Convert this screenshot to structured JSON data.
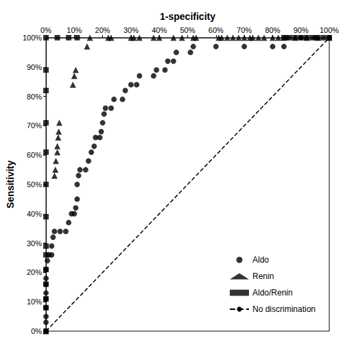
{
  "chart_data": {
    "type": "scatter",
    "xlabel": "1-specificity",
    "ylabel": "Sensitivity",
    "xlim": [
      0,
      100
    ],
    "ylim": [
      0,
      100
    ],
    "xticks": [
      {
        "value": 0,
        "label": "0%"
      },
      {
        "value": 10,
        "label": "10%"
      },
      {
        "value": 20,
        "label": "20%"
      },
      {
        "value": 30,
        "label": "30%"
      },
      {
        "value": 40,
        "label": "40%"
      },
      {
        "value": 50,
        "label": "50%"
      },
      {
        "value": 60,
        "label": "60%"
      },
      {
        "value": 70,
        "label": "70%"
      },
      {
        "value": 80,
        "label": "80%"
      },
      {
        "value": 90,
        "label": "90%"
      },
      {
        "value": 100,
        "label": "100%"
      }
    ],
    "yticks": [
      {
        "value": 0,
        "label": "0%"
      },
      {
        "value": 10,
        "label": "10%"
      },
      {
        "value": 20,
        "label": "20%"
      },
      {
        "value": 30,
        "label": "30%"
      },
      {
        "value": 40,
        "label": "40%"
      },
      {
        "value": 50,
        "label": "50%"
      },
      {
        "value": 60,
        "label": "60%"
      },
      {
        "value": 70,
        "label": "70%"
      },
      {
        "value": 80,
        "label": "80%"
      },
      {
        "value": 90,
        "label": "90%"
      },
      {
        "value": 100,
        "label": "100%"
      }
    ],
    "grid": false,
    "legend": "lower right",
    "series": [
      {
        "name": "Aldo",
        "type": "scatter",
        "marker": "circle",
        "color": "#000000",
        "x": [
          0,
          0,
          0,
          0,
          0,
          0,
          0,
          0,
          0,
          0.5,
          1,
          2,
          2,
          2.5,
          3,
          5,
          7,
          8,
          9,
          10,
          10.5,
          11,
          11,
          11.5,
          12,
          14,
          15,
          16,
          17,
          17.5,
          19,
          19.5,
          20,
          20.5,
          21,
          23,
          24,
          27,
          28,
          30,
          32,
          33,
          38,
          39,
          42,
          43,
          45,
          46,
          51,
          52,
          60,
          70,
          80,
          84,
          85,
          90,
          95,
          100
        ],
        "values": [
          0,
          3,
          5,
          8,
          11,
          13,
          16,
          18,
          21,
          24,
          26,
          26,
          29,
          32,
          34,
          34,
          34,
          37,
          40,
          40,
          42,
          45,
          50,
          53,
          55,
          55,
          58,
          61,
          63,
          66,
          66,
          68,
          71,
          74,
          76,
          76,
          79,
          79,
          82,
          84,
          84,
          87,
          87,
          89,
          89,
          92,
          92,
          95,
          95,
          97,
          97,
          97,
          97,
          97,
          100,
          100,
          100,
          100
        ]
      },
      {
        "name": "Renin",
        "type": "scatter",
        "marker": "triangle",
        "color": "#000000",
        "x": [
          0,
          3,
          3.3,
          3.5,
          4,
          4,
          4.3,
          4.5,
          4.7,
          9.5,
          10,
          10.5,
          14.5,
          15.5,
          22,
          23,
          30,
          31,
          33,
          38,
          40,
          45,
          48,
          52,
          53,
          61,
          62,
          64,
          66,
          68,
          70,
          72,
          73,
          75,
          77,
          80,
          82,
          84,
          88,
          92,
          96,
          100
        ],
        "values": [
          0,
          53,
          55,
          58,
          61,
          63,
          66,
          68,
          71,
          84,
          87,
          89,
          97,
          100,
          100,
          100,
          100,
          100,
          100,
          100,
          100,
          100,
          100,
          100,
          100,
          100,
          100,
          100,
          100,
          100,
          100,
          100,
          100,
          100,
          100,
          100,
          100,
          100,
          100,
          100,
          100,
          100
        ]
      },
      {
        "name": "Aldo/Renin",
        "type": "scatter",
        "marker": "square",
        "color": "#000000",
        "x": [
          0,
          0,
          0,
          0,
          0,
          0,
          0,
          0,
          0,
          0,
          0,
          0,
          0,
          0,
          4,
          8,
          11,
          84,
          86,
          88,
          90,
          92,
          94,
          96,
          98,
          100
        ],
        "values": [
          0,
          8,
          11,
          16,
          21,
          26,
          29,
          39,
          50,
          61,
          71,
          82,
          89,
          100,
          100,
          100,
          100,
          100,
          100,
          100,
          100,
          100,
          100,
          100,
          100,
          100
        ]
      },
      {
        "name": "No discrimination",
        "type": "line",
        "line_style": "dashed",
        "color": "#000000",
        "x": [
          0,
          100
        ],
        "values": [
          0,
          100
        ]
      }
    ]
  }
}
